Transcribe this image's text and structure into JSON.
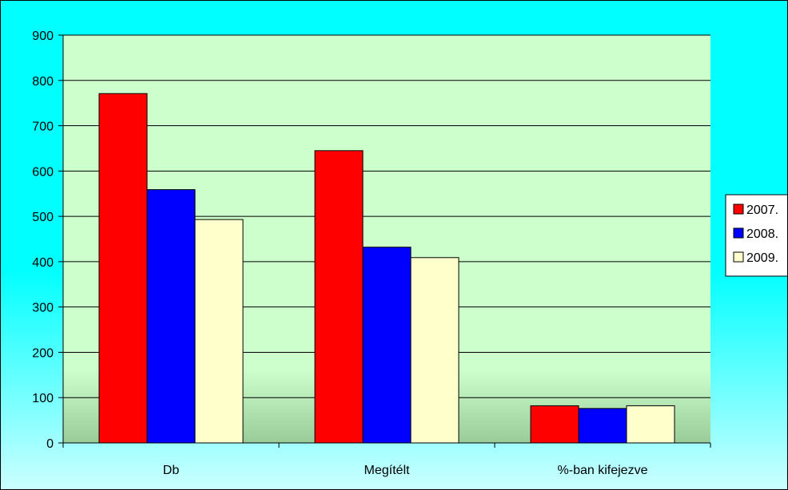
{
  "chart_data": {
    "type": "bar",
    "categories": [
      "Db",
      "Megítélt",
      "%-ban kifejezve"
    ],
    "series": [
      {
        "name": "2007.",
        "values": [
          771,
          645,
          82
        ],
        "color": "#ff0000"
      },
      {
        "name": "2008.",
        "values": [
          559,
          432,
          76
        ],
        "color": "#0000ff"
      },
      {
        "name": "2009.",
        "values": [
          493,
          409,
          82
        ],
        "color": "#ffffcc"
      }
    ],
    "yticks": [
      "0",
      "100",
      "200",
      "300",
      "400",
      "500",
      "600",
      "700",
      "800",
      "900"
    ],
    "ylim": [
      0,
      900
    ],
    "grid": true,
    "legend_position": "right",
    "colors": {
      "plot_background_top": "#ccffcc",
      "plot_background_bottom": "#99cc99",
      "chart_background_top": "#00ffff",
      "chart_background_bottom": "#ccffff",
      "grid": "#000000",
      "bar_outline": "#000000"
    }
  }
}
